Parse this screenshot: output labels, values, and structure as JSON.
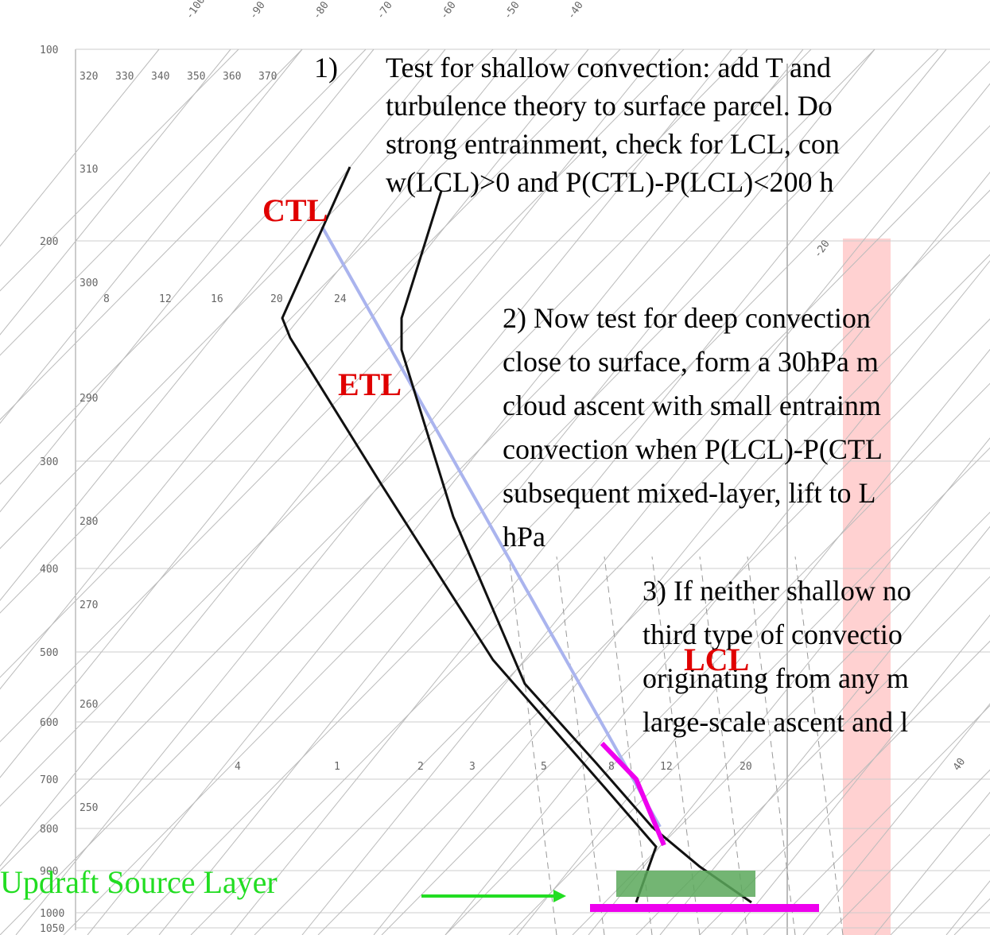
{
  "pressure_labels": [
    "100",
    "200",
    "300",
    "400",
    "500",
    "600",
    "700",
    "800",
    "900",
    "1000",
    "1050"
  ],
  "temperature_labels": [
    "-100",
    "-90",
    "-80",
    "-70",
    "-60",
    "-50",
    "-40",
    "-20",
    "40"
  ],
  "theta_labels": [
    "320",
    "330",
    "340",
    "350",
    "360",
    "370",
    "310",
    "300",
    "290",
    "280",
    "270",
    "260",
    "250"
  ],
  "mixing_ratio_labels": [
    "8",
    "12",
    "16",
    "20",
    "24",
    "4",
    "1",
    "2",
    "3",
    "5",
    "8",
    "12",
    "20"
  ],
  "annotations": {
    "step1": {
      "number": "1)",
      "lines": [
        "Test for shallow convection: add T and",
        "turbulence theory to surface parcel. Do",
        "strong entrainment, check for LCL, con",
        "w(LCL)>0 and P(CTL)-P(LCL)<200 h"
      ]
    },
    "step2": {
      "lines": [
        "2) Now test for deep convection",
        "close to surface, form a 30hPa m",
        "cloud ascent with small entrainm",
        "convection when P(LCL)-P(CTL",
        "subsequent mixed-layer, lift to L",
        "hPa"
      ]
    },
    "step3": {
      "lines": [
        "3) If neither shallow no",
        "third type of convectio",
        "originating from any m",
        "large-scale ascent and l"
      ]
    }
  },
  "labels": {
    "ctl": "CTL",
    "etl": "ETL",
    "lcl": "LCL",
    "source": "Updraft Source Layer"
  }
}
